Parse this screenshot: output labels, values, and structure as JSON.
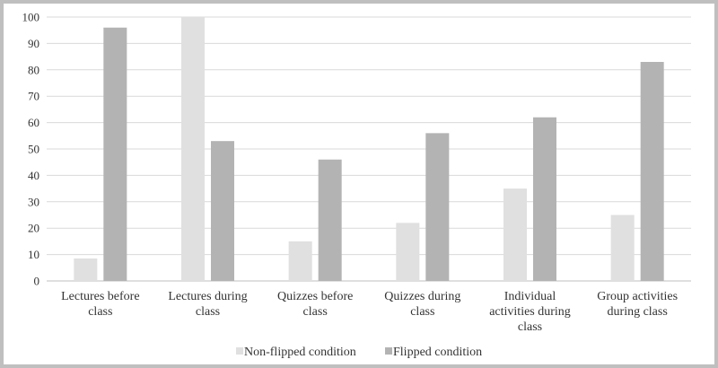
{
  "chart_data": {
    "type": "bar",
    "title": "",
    "xlabel": "",
    "ylabel": "",
    "ylim": [
      0,
      100
    ],
    "yticks": [
      0,
      10,
      20,
      30,
      40,
      50,
      60,
      70,
      80,
      90,
      100
    ],
    "grid": true,
    "legend_position": "bottom",
    "categories": [
      [
        "Lectures  before",
        "class"
      ],
      [
        "Lectures  during",
        "class"
      ],
      [
        "Quizzes before",
        "class"
      ],
      [
        "Quizzes during",
        "class"
      ],
      [
        "Individual",
        "activities during",
        "class"
      ],
      [
        "Group activities",
        "during class"
      ]
    ],
    "series": [
      {
        "name": "Non-flipped condition",
        "color": "#e0e0e0",
        "values": [
          8.5,
          100,
          15,
          22,
          35,
          25
        ]
      },
      {
        "name": "Flipped condition",
        "color": "#b3b3b3",
        "values": [
          96,
          53,
          46,
          56,
          62,
          83
        ]
      }
    ]
  }
}
